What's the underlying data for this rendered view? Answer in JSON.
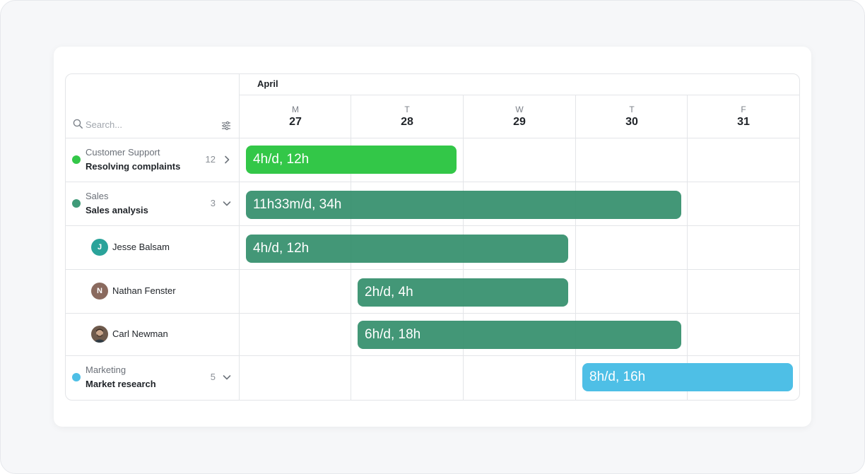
{
  "colors": {
    "customer_support": "#33c748",
    "sales": "#3f9a78",
    "marketing": "#4ebfe6",
    "avatar_jesse": "#2aa39a",
    "avatar_nathan": "#8a6a5e"
  },
  "header": {
    "month": "April",
    "days": [
      {
        "dow": "M",
        "num": "27"
      },
      {
        "dow": "T",
        "num": "28"
      },
      {
        "dow": "W",
        "num": "29"
      },
      {
        "dow": "T",
        "num": "30"
      },
      {
        "dow": "F",
        "num": "31"
      }
    ]
  },
  "search": {
    "placeholder": "Search...",
    "icon": "search-icon",
    "filter_icon": "sliders-icon"
  },
  "rows": [
    {
      "type": "project",
      "team": "Customer Support",
      "project": "Resolving complaints",
      "count": "12",
      "chevron": "chevron-right-icon",
      "bar": {
        "label": "4h/d, 12h",
        "start_day": "27",
        "end_day": "28",
        "color": "#33c748"
      }
    },
    {
      "type": "project",
      "team": "Sales",
      "project": "Sales analysis",
      "count": "3",
      "chevron": "chevron-down-icon",
      "bar": {
        "label": "11h33m/d, 34h",
        "start_day": "27",
        "end_day": "30",
        "color": "#3f9a78"
      }
    },
    {
      "type": "person",
      "name": "Jesse Balsam",
      "initial": "J",
      "bar": {
        "label": "4h/d, 12h",
        "start_day": "27",
        "end_day": "29",
        "color": "#3f9a78"
      }
    },
    {
      "type": "person",
      "name": "Nathan Fenster",
      "initial": "N",
      "bar": {
        "label": "2h/d, 4h",
        "start_day": "28",
        "end_day": "29",
        "color": "#3f9a78"
      }
    },
    {
      "type": "person",
      "name": "Carl Newman",
      "initial": "",
      "bar": {
        "label": "6h/d, 18h",
        "start_day": "28",
        "end_day": "30",
        "color": "#3f9a78"
      }
    },
    {
      "type": "project",
      "team": "Marketing",
      "project": "Market research",
      "count": "5",
      "chevron": "chevron-down-icon",
      "bar": {
        "label": "8h/d, 16h",
        "start_day": "30",
        "end_day": "31",
        "color": "#4ebfe6"
      }
    }
  ]
}
